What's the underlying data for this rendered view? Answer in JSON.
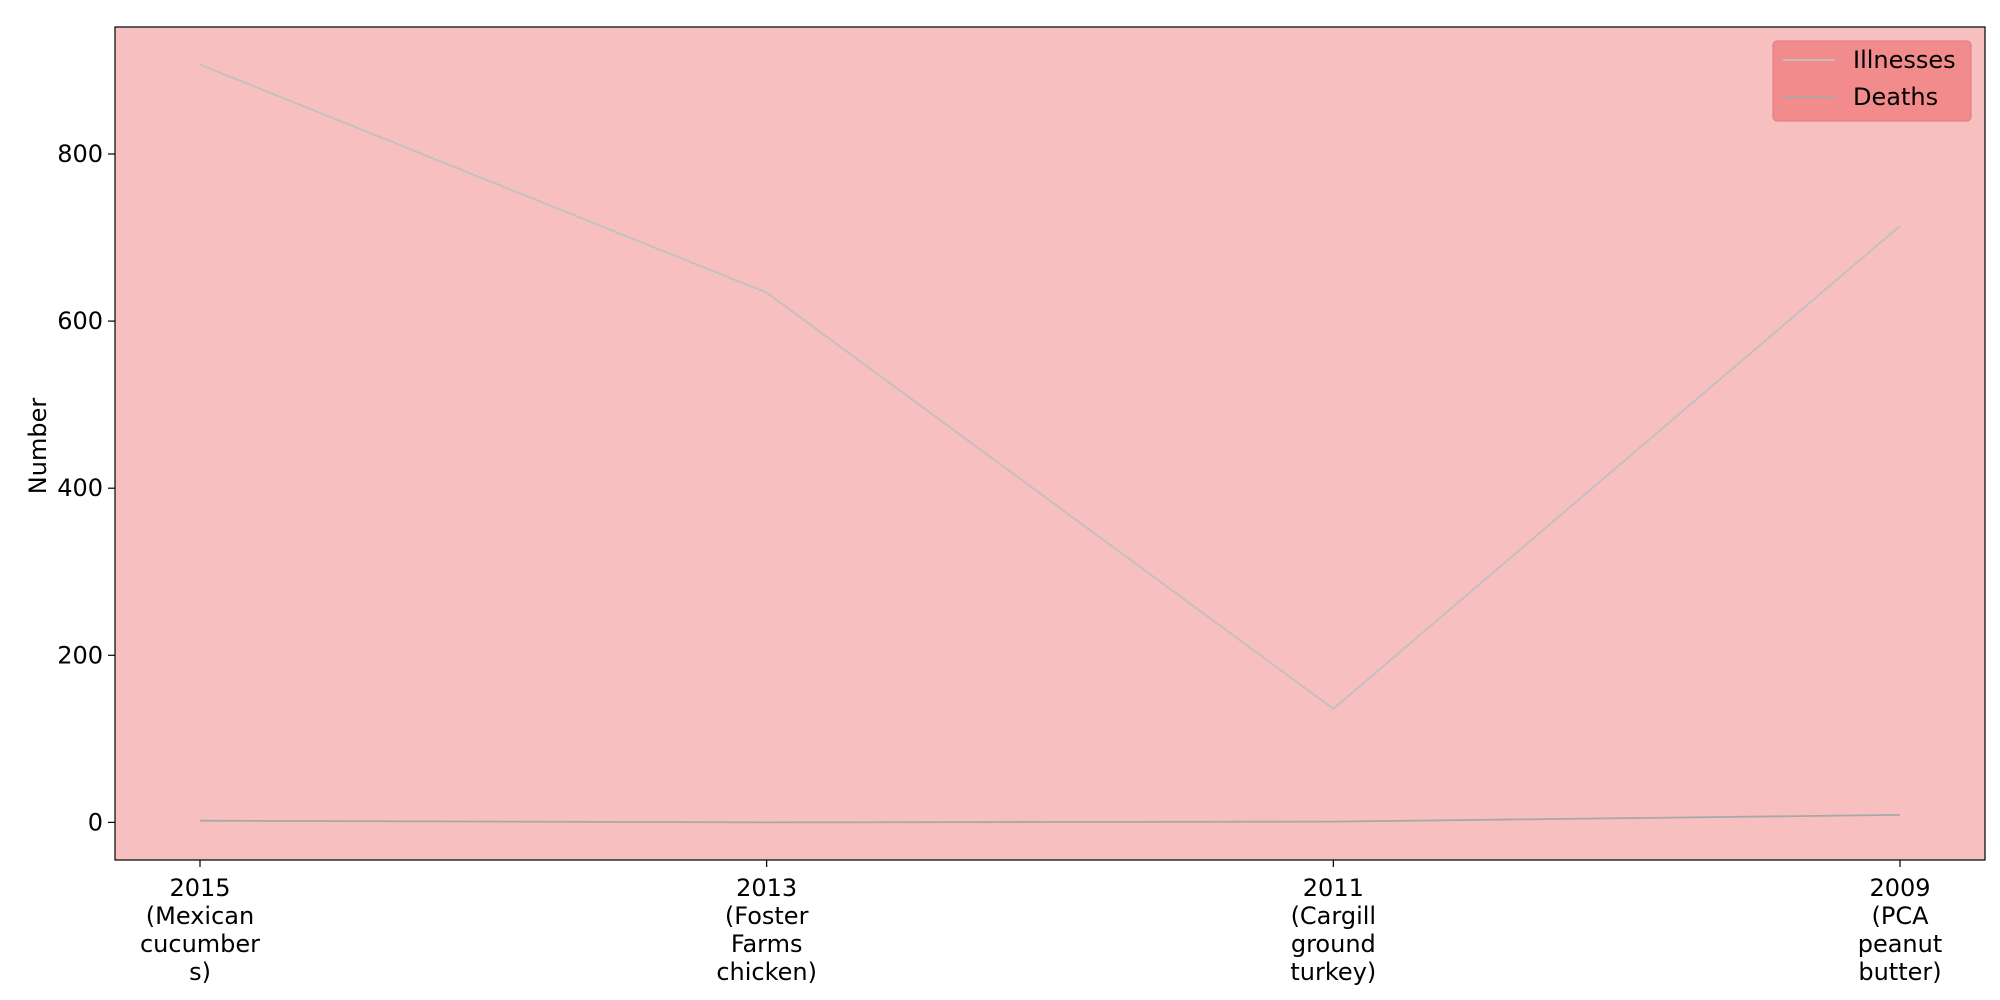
{
  "chart_data": {
    "type": "line",
    "categories": [
      [
        "2015",
        "(Mexican",
        "cucumber",
        "s)"
      ],
      [
        "2013",
        "(Foster",
        "Farms",
        "chicken)"
      ],
      [
        "2011",
        "(Cargill",
        "ground",
        "turkey)"
      ],
      [
        "2009",
        "(PCA",
        "peanut",
        "butter)"
      ]
    ],
    "series": [
      {
        "name": "Illnesses",
        "values": [
          907,
          634,
          136,
          714
        ],
        "color": "#c0c0c0"
      },
      {
        "name": "Deaths",
        "values": [
          2,
          0,
          1,
          9
        ],
        "color": "#a8a8a8"
      }
    ],
    "xlabel": "",
    "ylabel": "Number",
    "yticks": [
      0,
      200,
      400,
      600,
      800
    ],
    "ylim": [
      -45,
      952
    ],
    "grid": false,
    "legend_position": "top-right",
    "colors": {
      "plot_background": "#f7bfc0",
      "legend_background": "#f28b8c",
      "axis": "#000000"
    }
  }
}
